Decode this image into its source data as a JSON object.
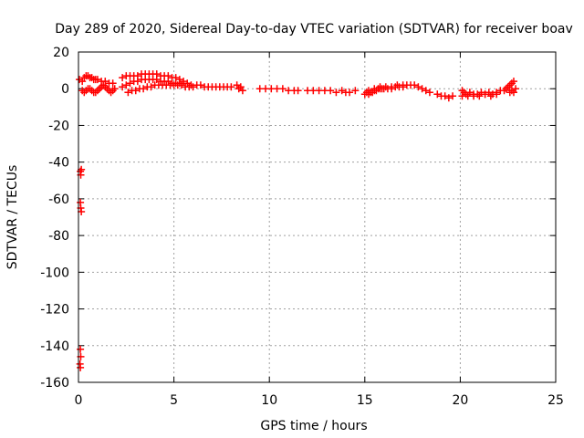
{
  "chart_data": {
    "type": "scatter",
    "title": "Day 289 of 2020, Sidereal Day-to-day VTEC variation (SDTVAR) for receiver boav",
    "xlabel": "GPS time / hours",
    "ylabel": "SDTVAR / TECUs",
    "xlim": [
      0,
      25
    ],
    "ylim": [
      -160,
      20
    ],
    "xticks": [
      0,
      5,
      10,
      15,
      20,
      25
    ],
    "yticks": [
      -160,
      -140,
      -120,
      -100,
      -80,
      -60,
      -40,
      -20,
      0,
      20
    ],
    "grid": true,
    "marker": "+",
    "color": "#ff0000",
    "series": [
      {
        "name": "SDTVAR",
        "points": [
          [
            0.05,
            5
          ],
          [
            0.1,
            -45
          ],
          [
            0.12,
            -47
          ],
          [
            0.15,
            -44
          ],
          [
            0.1,
            -62
          ],
          [
            0.12,
            -65
          ],
          [
            0.15,
            -67
          ],
          [
            0.1,
            -142
          ],
          [
            0.12,
            -146
          ],
          [
            0.08,
            -150
          ],
          [
            0.1,
            -152
          ],
          [
            0.2,
            4
          ],
          [
            0.3,
            6
          ],
          [
            0.4,
            7
          ],
          [
            0.5,
            7
          ],
          [
            0.6,
            6
          ],
          [
            0.7,
            6
          ],
          [
            0.8,
            5
          ],
          [
            0.9,
            5
          ],
          [
            1.0,
            5
          ],
          [
            1.2,
            4
          ],
          [
            1.4,
            4
          ],
          [
            1.6,
            3
          ],
          [
            1.8,
            3
          ],
          [
            0.2,
            -1
          ],
          [
            0.3,
            -2
          ],
          [
            0.4,
            -1
          ],
          [
            0.5,
            0
          ],
          [
            0.6,
            0
          ],
          [
            0.7,
            -1
          ],
          [
            0.8,
            -2
          ],
          [
            0.9,
            -2
          ],
          [
            1.0,
            -1
          ],
          [
            1.1,
            0
          ],
          [
            1.2,
            1
          ],
          [
            1.3,
            2
          ],
          [
            1.4,
            1
          ],
          [
            1.5,
            0
          ],
          [
            1.6,
            -1
          ],
          [
            1.7,
            -2
          ],
          [
            1.8,
            -1
          ],
          [
            1.9,
            0
          ],
          [
            2.3,
            6
          ],
          [
            2.5,
            7
          ],
          [
            2.7,
            7
          ],
          [
            2.9,
            7
          ],
          [
            3.1,
            7
          ],
          [
            3.3,
            8
          ],
          [
            3.5,
            8
          ],
          [
            3.7,
            8
          ],
          [
            3.9,
            8
          ],
          [
            4.1,
            8
          ],
          [
            4.3,
            7
          ],
          [
            4.5,
            7
          ],
          [
            4.7,
            7
          ],
          [
            4.9,
            6
          ],
          [
            5.1,
            6
          ],
          [
            5.3,
            5
          ],
          [
            5.5,
            4
          ],
          [
            5.7,
            3
          ],
          [
            5.9,
            2
          ],
          [
            2.3,
            1
          ],
          [
            2.5,
            2
          ],
          [
            2.7,
            3
          ],
          [
            2.9,
            4
          ],
          [
            3.1,
            4
          ],
          [
            3.3,
            5
          ],
          [
            3.5,
            5
          ],
          [
            3.7,
            5
          ],
          [
            3.9,
            5
          ],
          [
            4.1,
            5
          ],
          [
            4.3,
            4
          ],
          [
            4.5,
            4
          ],
          [
            4.7,
            4
          ],
          [
            4.9,
            3
          ],
          [
            5.1,
            3
          ],
          [
            5.3,
            3
          ],
          [
            2.6,
            -2
          ],
          [
            2.8,
            -1
          ],
          [
            3.0,
            -1
          ],
          [
            3.2,
            0
          ],
          [
            3.4,
            0
          ],
          [
            3.6,
            1
          ],
          [
            3.8,
            1
          ],
          [
            4.0,
            2
          ],
          [
            4.2,
            2
          ],
          [
            4.4,
            2
          ],
          [
            4.6,
            2
          ],
          [
            4.8,
            2
          ],
          [
            5.0,
            2
          ],
          [
            5.2,
            2
          ],
          [
            5.4,
            2
          ],
          [
            5.6,
            1
          ],
          [
            5.8,
            1
          ],
          [
            6.0,
            1
          ],
          [
            6.2,
            2
          ],
          [
            6.4,
            2
          ],
          [
            6.6,
            1
          ],
          [
            6.8,
            1
          ],
          [
            7.0,
            1
          ],
          [
            7.2,
            1
          ],
          [
            7.4,
            1
          ],
          [
            7.6,
            1
          ],
          [
            7.8,
            1
          ],
          [
            8.0,
            1
          ],
          [
            8.3,
            2
          ],
          [
            8.4,
            0
          ],
          [
            8.5,
            1
          ],
          [
            8.6,
            -1
          ],
          [
            9.5,
            0
          ],
          [
            9.8,
            0
          ],
          [
            10.1,
            0
          ],
          [
            10.4,
            0
          ],
          [
            10.7,
            0
          ],
          [
            11.0,
            -1
          ],
          [
            11.3,
            -1
          ],
          [
            11.5,
            -1
          ],
          [
            12.0,
            -1
          ],
          [
            12.3,
            -1
          ],
          [
            12.6,
            -1
          ],
          [
            12.9,
            -1
          ],
          [
            13.2,
            -1
          ],
          [
            13.5,
            -2
          ],
          [
            13.8,
            -1
          ],
          [
            14.0,
            -2
          ],
          [
            14.2,
            -2
          ],
          [
            14.5,
            -1
          ],
          [
            15.0,
            -3
          ],
          [
            15.1,
            -2
          ],
          [
            15.2,
            -3
          ],
          [
            15.3,
            -2
          ],
          [
            15.4,
            -2
          ],
          [
            15.5,
            -1
          ],
          [
            15.6,
            -1
          ],
          [
            15.7,
            0
          ],
          [
            15.8,
            0
          ],
          [
            15.9,
            0
          ],
          [
            16.0,
            0
          ],
          [
            16.2,
            0
          ],
          [
            16.4,
            0
          ],
          [
            16.6,
            1
          ],
          [
            16.8,
            1
          ],
          [
            17.0,
            1
          ],
          [
            17.2,
            2
          ],
          [
            17.4,
            2
          ],
          [
            17.6,
            2
          ],
          [
            17.8,
            1
          ],
          [
            18.0,
            0
          ],
          [
            18.2,
            -1
          ],
          [
            18.4,
            -2
          ],
          [
            15.2,
            -1
          ],
          [
            15.5,
            0
          ],
          [
            15.8,
            1
          ],
          [
            16.1,
            1
          ],
          [
            16.4,
            1
          ],
          [
            16.7,
            2
          ],
          [
            17.0,
            2
          ],
          [
            18.8,
            -3
          ],
          [
            19.0,
            -4
          ],
          [
            19.2,
            -4
          ],
          [
            19.4,
            -5
          ],
          [
            19.6,
            -4
          ],
          [
            20.1,
            -1
          ],
          [
            20.2,
            -2
          ],
          [
            20.3,
            -3
          ],
          [
            20.5,
            -2
          ],
          [
            20.7,
            -3
          ],
          [
            20.9,
            -3
          ],
          [
            21.1,
            -2
          ],
          [
            21.3,
            -3
          ],
          [
            21.5,
            -2
          ],
          [
            21.7,
            -3
          ],
          [
            21.9,
            -2
          ],
          [
            22.1,
            -1
          ],
          [
            22.3,
            -1
          ],
          [
            20.1,
            -4
          ],
          [
            20.4,
            -4
          ],
          [
            20.7,
            -4
          ],
          [
            21.0,
            -4
          ],
          [
            21.3,
            -3
          ],
          [
            21.6,
            -4
          ],
          [
            21.9,
            -3
          ],
          [
            22.4,
            0
          ],
          [
            22.5,
            1
          ],
          [
            22.6,
            2
          ],
          [
            22.7,
            3
          ],
          [
            22.8,
            4
          ],
          [
            22.9,
            0
          ],
          [
            22.7,
            -1
          ],
          [
            22.8,
            -2
          ],
          [
            22.6,
            -2
          ]
        ]
      }
    ]
  }
}
